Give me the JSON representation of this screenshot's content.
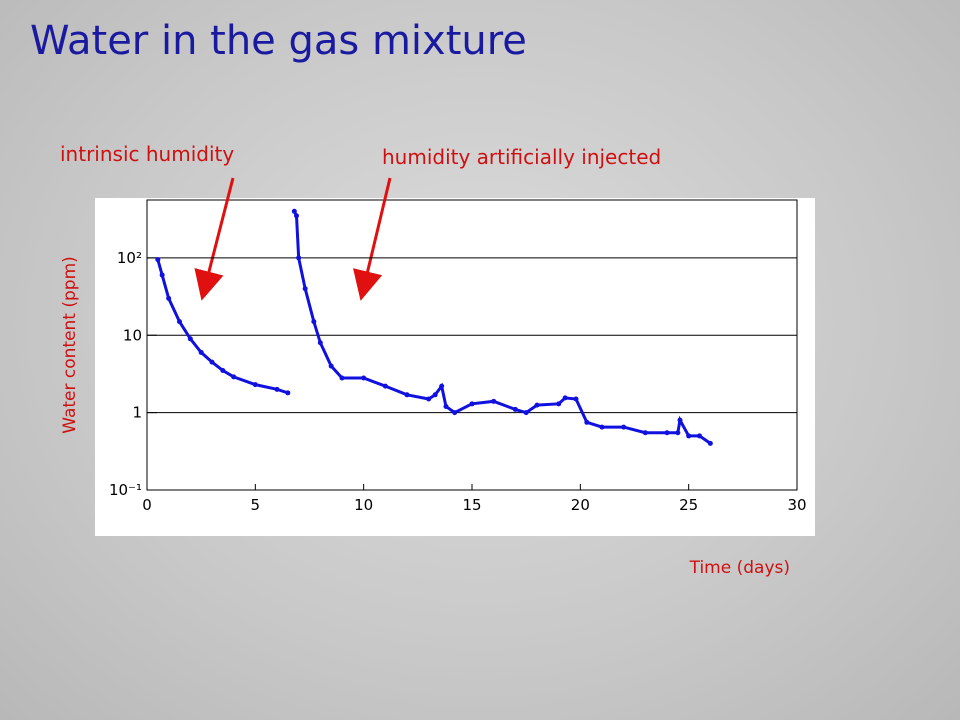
{
  "title": "Water in the gas mixture",
  "annotations": [
    "intrinsic humidity",
    "humidity artificially injected"
  ],
  "chart_data": {
    "type": "scatter",
    "x_label": "Time (days)",
    "y_label": "Water content (ppm)",
    "log_y": true,
    "grid": true,
    "xlim": [
      0,
      30
    ],
    "xticks": [
      0,
      5,
      10,
      15,
      20,
      25,
      30
    ],
    "ylim": [
      0.1,
      560
    ],
    "yticks": [
      {
        "value": 0.1,
        "label": "10⁻¹"
      },
      1,
      10,
      {
        "value": 100,
        "label": "10²"
      }
    ],
    "series": [
      {
        "color": "#1010e0",
        "x": [
          0.5,
          0.7,
          1,
          1.5,
          2,
          2.5,
          3,
          3.5,
          4,
          5,
          6,
          6.5
        ],
        "values": [
          95,
          60,
          30,
          15,
          9,
          6,
          4.5,
          3.5,
          2.9,
          2.3,
          2.0,
          1.8
        ]
      },
      {
        "color": "#1010e0",
        "x": [
          6.8,
          6.9,
          7.0,
          7.3,
          7.7,
          8,
          8.5,
          9,
          10,
          11,
          12,
          13,
          13.3,
          13.6,
          13.8,
          14.2,
          15,
          16,
          17,
          17.5,
          18,
          19,
          19.3,
          19.8,
          20.3,
          21,
          22,
          23,
          24,
          24.5,
          24.6,
          25,
          25.5,
          26
        ],
        "values": [
          400,
          350,
          100,
          40,
          15,
          8,
          4,
          2.8,
          2.8,
          2.2,
          1.7,
          1.5,
          1.7,
          2.2,
          1.2,
          1.0,
          1.3,
          1.4,
          1.1,
          1.0,
          1.25,
          1.3,
          1.55,
          1.5,
          0.75,
          0.65,
          0.65,
          0.55,
          0.55,
          0.55,
          0.8,
          0.5,
          0.5,
          0.4
        ]
      }
    ]
  }
}
